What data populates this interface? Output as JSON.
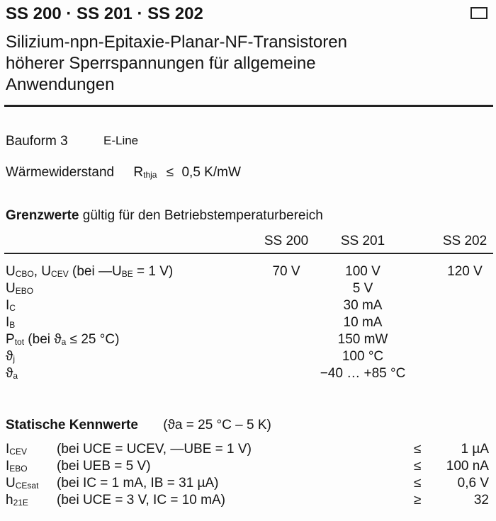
{
  "header": {
    "title": "SS 200 · SS 201 · SS 202",
    "subtitle_lines": [
      "Silizium-npn-Epitaxie-Planar-NF-Transistoren",
      "höherer Sperrspannungen für allgemeine",
      "Anwendungen"
    ]
  },
  "package": {
    "label": "Bauform 3",
    "value": "E-Line"
  },
  "thermal": {
    "label": "Wärmewiderstand",
    "symbol": "R",
    "symbol_sub": "thja",
    "relation": "≤",
    "value": "0,5 K/mW"
  },
  "limits": {
    "heading": "Grenzwerte",
    "heading_rest": "gültig für den Betriebstemperaturbereich",
    "columns": [
      "SS 200",
      "SS 201",
      "SS 202"
    ],
    "rows": [
      {
        "symbol": "U",
        "sub": "CBO",
        "rest": ", U",
        "sub2": "CEV",
        "cond": " (bei —U",
        "sub3": "BE",
        "cond2": " = 1 V)",
        "values": [
          "70 V",
          "100 V",
          "120 V"
        ]
      },
      {
        "symbol": "U",
        "sub": "EBO",
        "common": "5 V"
      },
      {
        "symbol": "I",
        "sub": "C",
        "common": "30 mA"
      },
      {
        "symbol": "I",
        "sub": "B",
        "common": "10 mA"
      },
      {
        "symbol": "P",
        "sub": "tot",
        "cond": " (bei ϑ",
        "sub3": "a",
        "cond2": " ≤ 25 °C)",
        "common": "150 mW"
      },
      {
        "symbol": "ϑ",
        "sub": "j",
        "common": "100 °C"
      },
      {
        "symbol": "ϑ",
        "sub": "a",
        "common": "−40 … +85 °C"
      }
    ]
  },
  "static": {
    "heading": "Statische Kennwerte",
    "condition": "(ϑa = 25 °C – 5 K)",
    "rows": [
      {
        "symbol": "I",
        "sub": "CEV",
        "cond": "(bei UCE = UCEV, —UBE = 1 V)",
        "relation": "≤",
        "value": "1 µA"
      },
      {
        "symbol": "I",
        "sub": "EBO",
        "cond": "(bei UEB = 5 V)",
        "relation": "≤",
        "value": "100 nA"
      },
      {
        "symbol": "U",
        "sub": "CEsat",
        "cond": "(bei IC = 1 mA, IB = 31 µA)",
        "relation": "≤",
        "value": "0,6 V"
      },
      {
        "symbol": "h",
        "sub": "21E",
        "cond": "(bei UCE = 3 V, IC = 10 mA)",
        "relation": "≥",
        "value": "32"
      }
    ]
  }
}
